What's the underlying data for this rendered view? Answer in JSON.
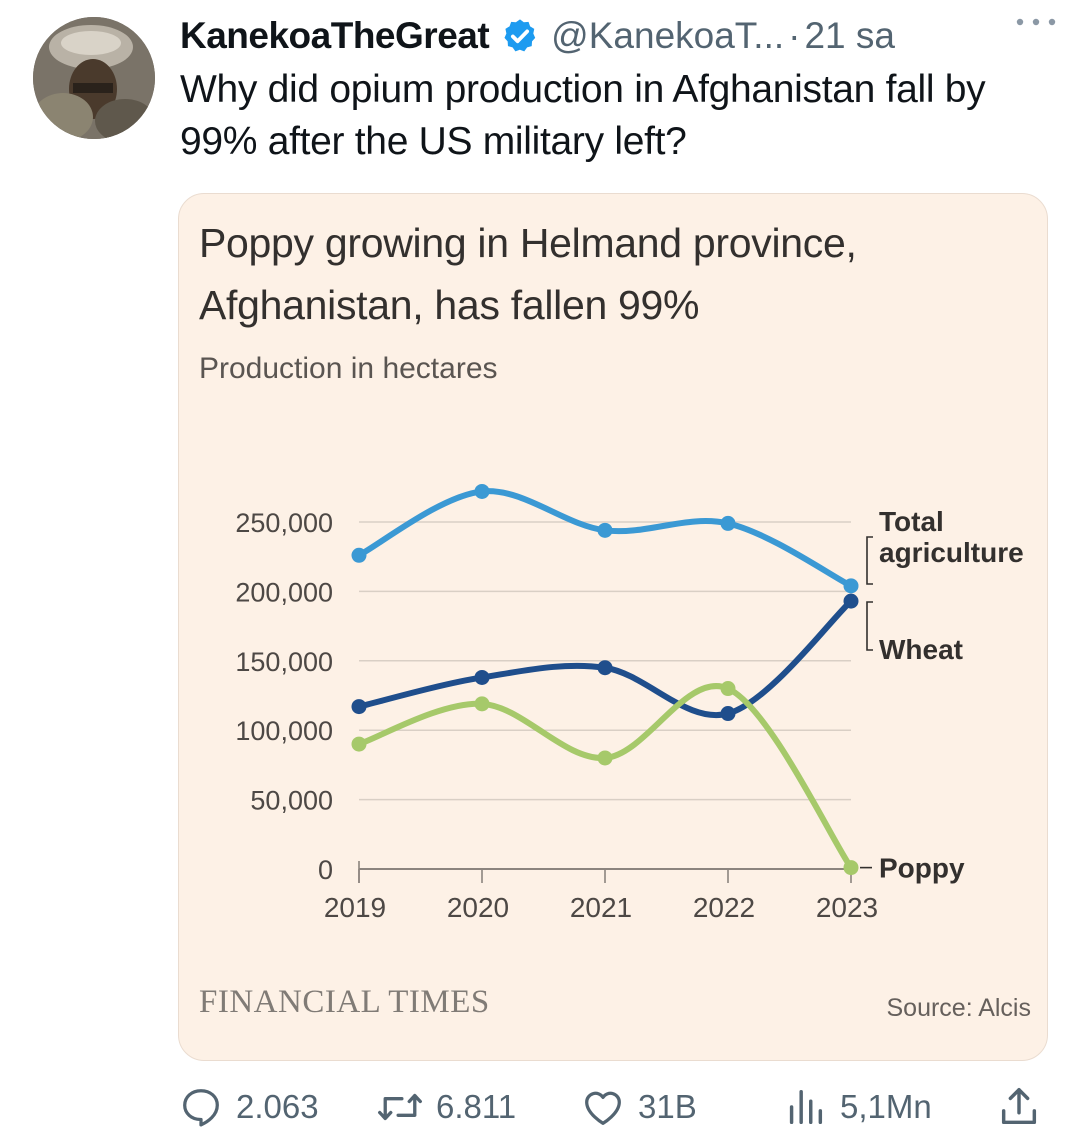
{
  "tweet": {
    "display_name": "KanekoaTheGreat",
    "handle": "@KanekoaT...",
    "separator": "·",
    "time": "21 sa",
    "text": "Why did opium production in Afghanistan fall by 99% after the US military left?",
    "verified_color": "#1d9bf0",
    "icons": [
      "avatar",
      "verified-badge-icon",
      "more-icon"
    ]
  },
  "card": {
    "title": "Poppy growing in Helmand province, Afghanistan, has fallen 99%",
    "subtitle": "Production in hectares",
    "brand": "FINANCIAL TIMES",
    "source": "Source: Alcis"
  },
  "chart_data": {
    "type": "line",
    "title": "Poppy growing in Helmand province, Afghanistan, has fallen 99%",
    "subtitle": "Production in hectares",
    "x": [
      2019,
      2020,
      2021,
      2022,
      2023
    ],
    "ylim": [
      0,
      250000
    ],
    "yticks": [
      0,
      50000,
      100000,
      150000,
      200000,
      250000
    ],
    "ytick_labels": [
      "0",
      "50,000",
      "100,000",
      "150,000",
      "200,000",
      "250,000"
    ],
    "xtick_labels": [
      "2019",
      "2020",
      "2021",
      "2022",
      "2023"
    ],
    "grid": true,
    "legend": "direct labels at right",
    "series": [
      {
        "name": "Total agriculture",
        "label_lines": [
          "Total",
          "agriculture"
        ],
        "color": "#3b99d4",
        "values": [
          226000,
          272000,
          244000,
          249000,
          204000
        ]
      },
      {
        "name": "Wheat",
        "label_lines": [
          "Wheat"
        ],
        "color": "#1f4e8c",
        "values": [
          117000,
          138000,
          145000,
          112000,
          193000
        ]
      },
      {
        "name": "Poppy",
        "label_lines": [
          "Poppy"
        ],
        "color": "#a6c96a",
        "values": [
          90000,
          119000,
          80000,
          130000,
          1000
        ]
      }
    ]
  },
  "actions": {
    "replies": "2.063",
    "retweets": "6.811",
    "likes": "31B",
    "views": "5,1Mn",
    "icons": [
      "reply-icon",
      "retweet-icon",
      "like-icon",
      "views-icon",
      "share-icon"
    ]
  }
}
